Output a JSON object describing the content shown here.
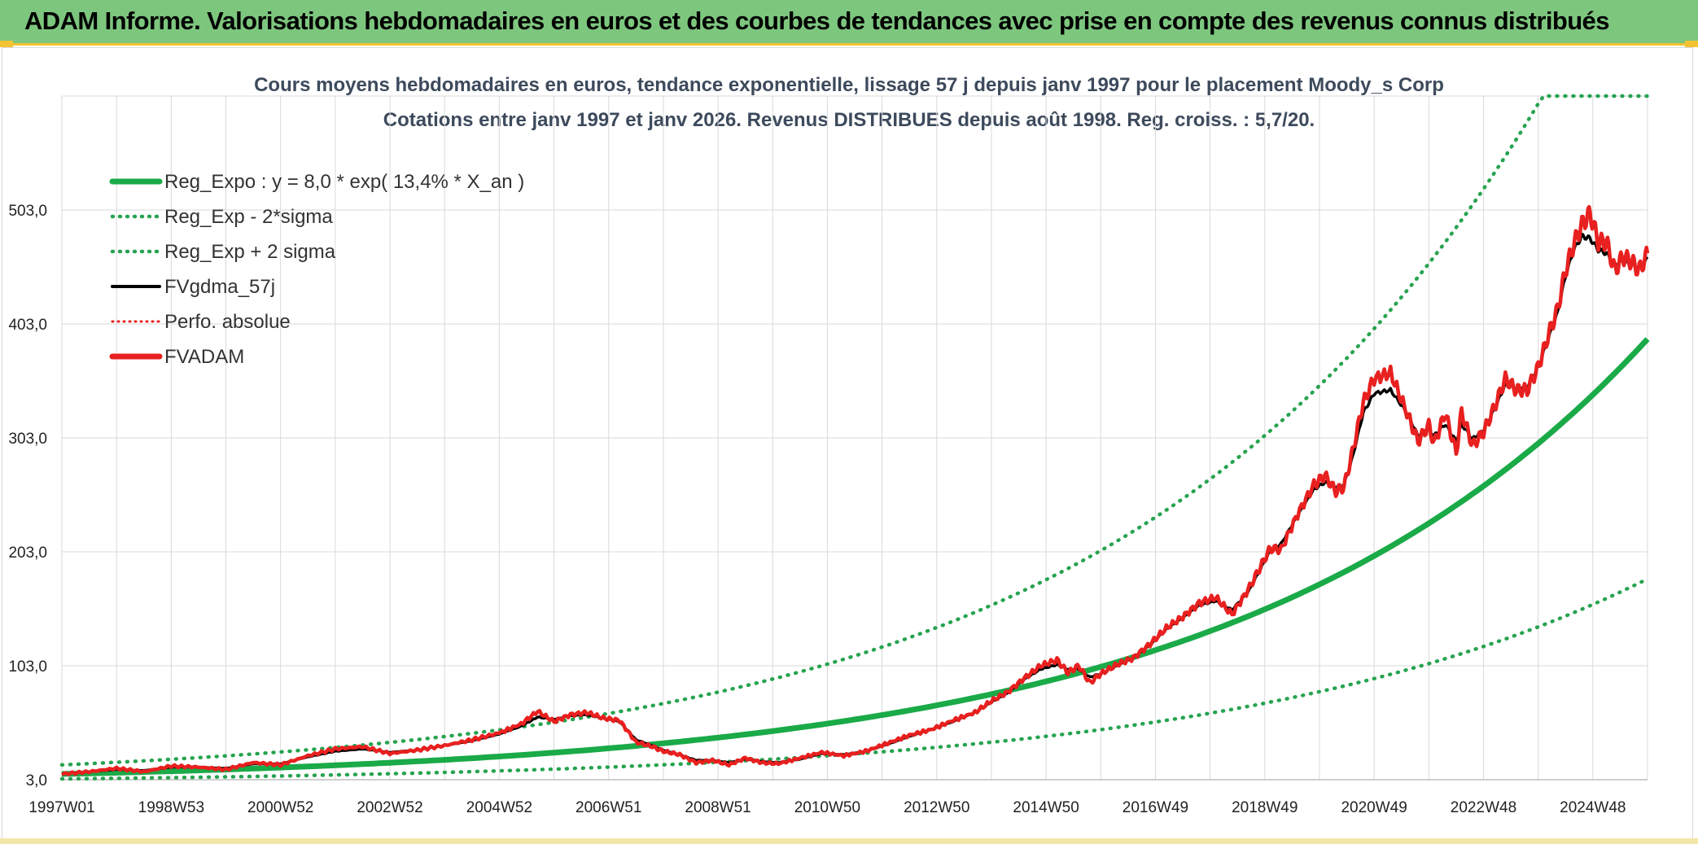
{
  "header": {
    "title": "ADAM Informe. Valorisations hebdomadaires en euros et des courbes de tendances avec prise en compte des revenus connus distribués"
  },
  "colors": {
    "banner": "#7dc67e",
    "accent": "#f3c332",
    "reg_green": "#1aaa48",
    "band_green": "#27a350",
    "red": "#e8201f",
    "black": "#000000"
  },
  "chart_data": {
    "type": "line",
    "title": "Cours moyens hebdomadaires en euros, tendance exponentielle, lissage 57 j depuis janv 1997 pour le placement Moody_s Corp",
    "subtitle": "Cotations entre janv 1997 et janv 2026. Revenus DISTRIBUES depuis août 1998. Reg. croiss. : 5,7/20.",
    "xlabel": "",
    "ylabel": "",
    "x_tick_labels": [
      "1997W01",
      "1998W53",
      "2000W52",
      "2002W52",
      "2004W52",
      "2006W51",
      "2008W51",
      "2010W50",
      "2012W50",
      "2014W50",
      "2016W49",
      "2018W49",
      "2020W49",
      "2022W48",
      "2024W48"
    ],
    "y_tick_labels": [
      "3,0",
      "103,0",
      "203,0",
      "303,0",
      "403,0",
      "503,0"
    ],
    "xlim": [
      1997.0,
      2026.0
    ],
    "ylim": [
      3,
      603
    ],
    "grid": true,
    "legend_position": "top-left",
    "legend": [
      {
        "label": "Reg_Expo : y = 8,0 * exp( 13,4% *  X_an )",
        "style": "solid-thick",
        "color": "#1aaa48"
      },
      {
        "label": "Reg_Exp - 2*sigma",
        "style": "dotted",
        "color": "#27a350"
      },
      {
        "label": "Reg_Exp + 2 sigma",
        "style": "dotted",
        "color": "#27a350"
      },
      {
        "label": "FVgdma_57j",
        "style": "solid",
        "color": "#000000"
      },
      {
        "label": "Perfo. absolue",
        "style": "dotted-thin",
        "color": "#e8201f"
      },
      {
        "label": "FVADAM",
        "style": "solid-thick",
        "color": "#e8201f"
      }
    ],
    "regression": {
      "a": 8.0,
      "b": 0.134,
      "lower_factor": 0.46,
      "upper_factor": 2.0
    },
    "series": [
      {
        "name": "FVADAM",
        "x": [
          1997.0,
          1997.5,
          1998.0,
          1998.5,
          1999.0,
          1999.5,
          2000.0,
          2000.5,
          2001.0,
          2001.5,
          2002.0,
          2002.5,
          2003.0,
          2003.5,
          2004.0,
          2004.5,
          2005.0,
          2005.4,
          2005.7,
          2006.0,
          2006.3,
          2006.6,
          2006.9,
          2007.2,
          2007.5,
          2007.8,
          2008.0,
          2008.3,
          2008.6,
          2008.9,
          2009.2,
          2009.5,
          2009.8,
          2010.1,
          2010.5,
          2010.9,
          2011.3,
          2011.7,
          2012.1,
          2012.5,
          2012.9,
          2013.3,
          2013.7,
          2014.0,
          2014.3,
          2014.6,
          2014.9,
          2015.2,
          2015.4,
          2015.6,
          2015.8,
          2016.0,
          2016.3,
          2016.6,
          2016.9,
          2017.2,
          2017.5,
          2017.8,
          2018.1,
          2018.4,
          2018.7,
          2018.9,
          2019.1,
          2019.3,
          2019.6,
          2019.9,
          2020.1,
          2020.3,
          2020.45,
          2020.6,
          2020.8,
          2021.0,
          2021.3,
          2021.6,
          2021.8,
          2022.0,
          2022.1,
          2022.3,
          2022.5,
          2022.6,
          2022.8,
          2023.0,
          2023.2,
          2023.4,
          2023.6,
          2023.8,
          2024.0,
          2024.2,
          2024.35,
          2024.5,
          2024.65,
          2024.8,
          2024.95,
          2025.1,
          2025.25,
          2025.4,
          2025.55,
          2025.7,
          2025.85,
          2026.0
        ],
        "values": [
          8,
          10,
          13,
          10,
          15,
          14,
          12,
          18,
          16,
          24,
          30,
          32,
          26,
          29,
          33,
          38,
          44,
          52,
          63,
          54,
          60,
          62,
          57,
          55,
          36,
          32,
          28,
          25,
          18,
          20,
          16,
          22,
          18,
          17,
          22,
          27,
          24,
          28,
          35,
          42,
          47,
          55,
          62,
          72,
          80,
          92,
          103,
          108,
          97,
          103,
          88,
          96,
          104,
          110,
          122,
          136,
          146,
          158,
          163,
          148,
          170,
          188,
          206,
          205,
          236,
          262,
          270,
          256,
          260,
          290,
          334,
          355,
          360,
          325,
          300,
          314,
          298,
          325,
          290,
          326,
          296,
          308,
          330,
          355,
          345,
          345,
          365,
          395,
          415,
          450,
          473,
          490,
          500,
          475,
          475,
          450,
          462,
          458,
          450,
          465
        ]
      },
      {
        "name": "FVgdma_57j",
        "x": [
          1997.0,
          1997.5,
          1998.0,
          1998.5,
          1999.0,
          1999.5,
          2000.0,
          2000.5,
          2001.0,
          2001.5,
          2002.0,
          2002.5,
          2003.0,
          2003.5,
          2004.0,
          2004.5,
          2005.0,
          2005.4,
          2005.7,
          2006.0,
          2006.3,
          2006.6,
          2006.9,
          2007.2,
          2007.5,
          2007.8,
          2008.0,
          2008.3,
          2008.6,
          2008.9,
          2009.2,
          2009.5,
          2009.8,
          2010.1,
          2010.5,
          2010.9,
          2011.3,
          2011.7,
          2012.1,
          2012.5,
          2012.9,
          2013.3,
          2013.7,
          2014.0,
          2014.3,
          2014.6,
          2014.9,
          2015.2,
          2015.4,
          2015.6,
          2015.8,
          2016.0,
          2016.3,
          2016.6,
          2016.9,
          2017.2,
          2017.5,
          2017.8,
          2018.1,
          2018.4,
          2018.7,
          2018.9,
          2019.1,
          2019.3,
          2019.6,
          2019.9,
          2020.1,
          2020.3,
          2020.45,
          2020.6,
          2020.8,
          2021.0,
          2021.3,
          2021.6,
          2021.8,
          2022.0,
          2022.1,
          2022.3,
          2022.5,
          2022.6,
          2022.8,
          2023.0,
          2023.2,
          2023.4,
          2023.6,
          2023.8,
          2024.0,
          2024.2,
          2024.35,
          2024.5,
          2024.65,
          2024.8,
          2024.95,
          2025.1,
          2025.25,
          2025.4,
          2025.55,
          2025.7,
          2025.85,
          2026.0
        ],
        "values": [
          8,
          10,
          12,
          11,
          14,
          14,
          13,
          17,
          17,
          23,
          28,
          30,
          27,
          29,
          33,
          37,
          43,
          50,
          58,
          56,
          59,
          60,
          57,
          54,
          38,
          33,
          29,
          25,
          20,
          20,
          18,
          21,
          19,
          18,
          21,
          26,
          25,
          28,
          34,
          41,
          47,
          54,
          62,
          71,
          79,
          91,
          100,
          104,
          100,
          100,
          93,
          96,
          103,
          110,
          121,
          135,
          145,
          156,
          160,
          152,
          168,
          186,
          204,
          210,
          235,
          258,
          264,
          260,
          262,
          285,
          325,
          342,
          345,
          325,
          305,
          310,
          305,
          315,
          300,
          315,
          302,
          310,
          328,
          350,
          347,
          348,
          365,
          392,
          412,
          445,
          468,
          480,
          478,
          468,
          465,
          455,
          458,
          455,
          452,
          460
        ]
      }
    ]
  }
}
